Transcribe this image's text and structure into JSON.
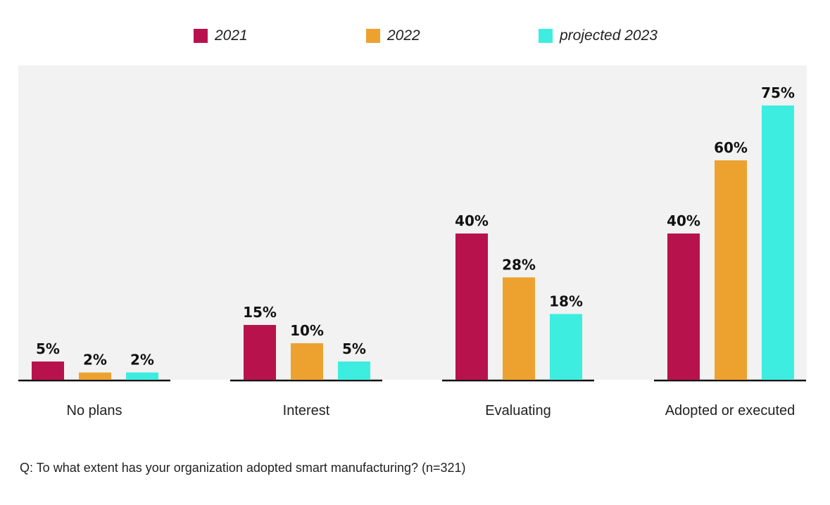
{
  "chart_data": {
    "type": "bar",
    "title": "",
    "xlabel": "",
    "ylabel": "",
    "categories": [
      "No plans",
      "Interest",
      "Evaluating",
      "Adopted or executed"
    ],
    "series": [
      {
        "name": "2021",
        "color": "#B8124D",
        "values": [
          5,
          15,
          40,
          40
        ],
        "labels": [
          "5%",
          "15%",
          "40%",
          "40%"
        ]
      },
      {
        "name": "2022",
        "color": "#EDA230",
        "values": [
          2,
          10,
          28,
          60
        ],
        "labels": [
          "2%",
          "10%",
          "28%",
          "60%"
        ]
      },
      {
        "name": "projected 2023",
        "color": "#3DEDE0",
        "values": [
          2,
          5,
          18,
          75
        ],
        "labels": [
          "2%",
          "5%",
          "18%",
          "75%"
        ]
      }
    ],
    "ylim": [
      0,
      85
    ],
    "grid": false,
    "legend": "top-center",
    "plot_background": "#F1F2F1",
    "note": "Q: To what extent has your organization adopted smart manufacturing? (n=321)"
  }
}
